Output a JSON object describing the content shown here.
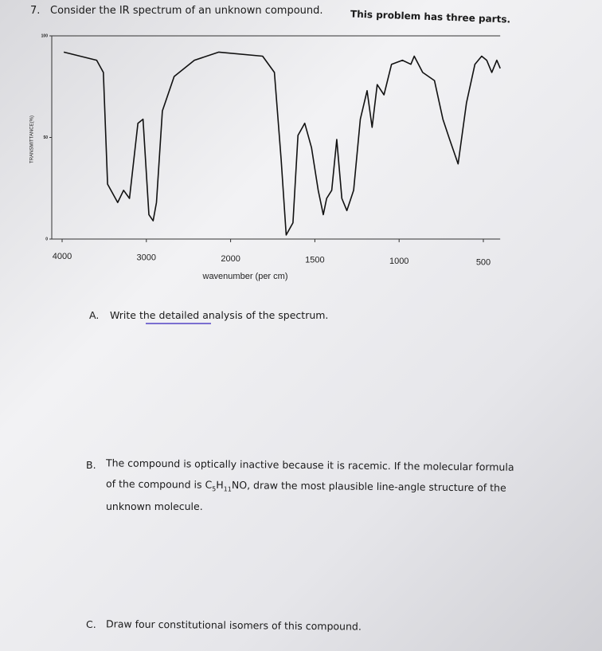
{
  "question": {
    "number": "7.",
    "text": "Consider the IR spectrum of an unknown compound.",
    "emphasis": "This problem has three parts."
  },
  "chart_data": {
    "type": "line",
    "xlabel": "wavenumber (per cm)",
    "ylabel": "TRANSMITTANCE(%)",
    "x": [
      3980,
      3590,
      3510,
      3460,
      3340,
      3270,
      3200,
      3100,
      3040,
      2970,
      2920,
      2880,
      2810,
      2670,
      2430,
      2140,
      1810,
      1740,
      1700,
      1670,
      1630,
      1600,
      1560,
      1520,
      1480,
      1450,
      1430,
      1400,
      1370,
      1340,
      1310,
      1270,
      1230,
      1190,
      1160,
      1130,
      1090,
      1045,
      980,
      930,
      910,
      860,
      790,
      740,
      700,
      650,
      600,
      550,
      510,
      480,
      450,
      420,
      400
    ],
    "values": [
      92,
      88,
      82,
      27,
      18,
      24,
      20,
      57,
      59,
      12,
      9,
      18,
      63,
      80,
      88,
      92,
      90,
      82,
      39,
      2,
      8,
      51,
      57,
      45,
      24,
      12,
      20,
      24,
      49,
      20,
      14,
      24,
      59,
      73,
      55,
      76,
      71,
      86,
      88,
      86,
      90,
      82,
      78,
      59,
      49,
      37,
      67,
      86,
      90,
      88,
      82,
      88,
      84
    ],
    "color": "#111111",
    "xlim": [
      4000,
      400
    ],
    "ylim": [
      0,
      100
    ],
    "xticks": [
      4000,
      3000,
      2000,
      1500,
      1000,
      500
    ],
    "yticks": [
      0,
      50,
      100
    ]
  },
  "parts": [
    {
      "letter": "A.",
      "lines": [
        "Write the detailed analysis of the spectrum."
      ]
    },
    {
      "letter": "B.",
      "lines": [
        "The compound is optically inactive because it is racemic. If the molecular formula"
      ],
      "formula_line": {
        "before": "of the compound is C",
        "c": "5",
        "h": "H",
        "h_count": "11",
        "after": "NO, draw the most plausible line-angle structure of the"
      },
      "last_line": "unknown molecule."
    },
    {
      "letter": "C.",
      "lines": [
        "Draw four constitutional isomers of this compound."
      ]
    }
  ]
}
